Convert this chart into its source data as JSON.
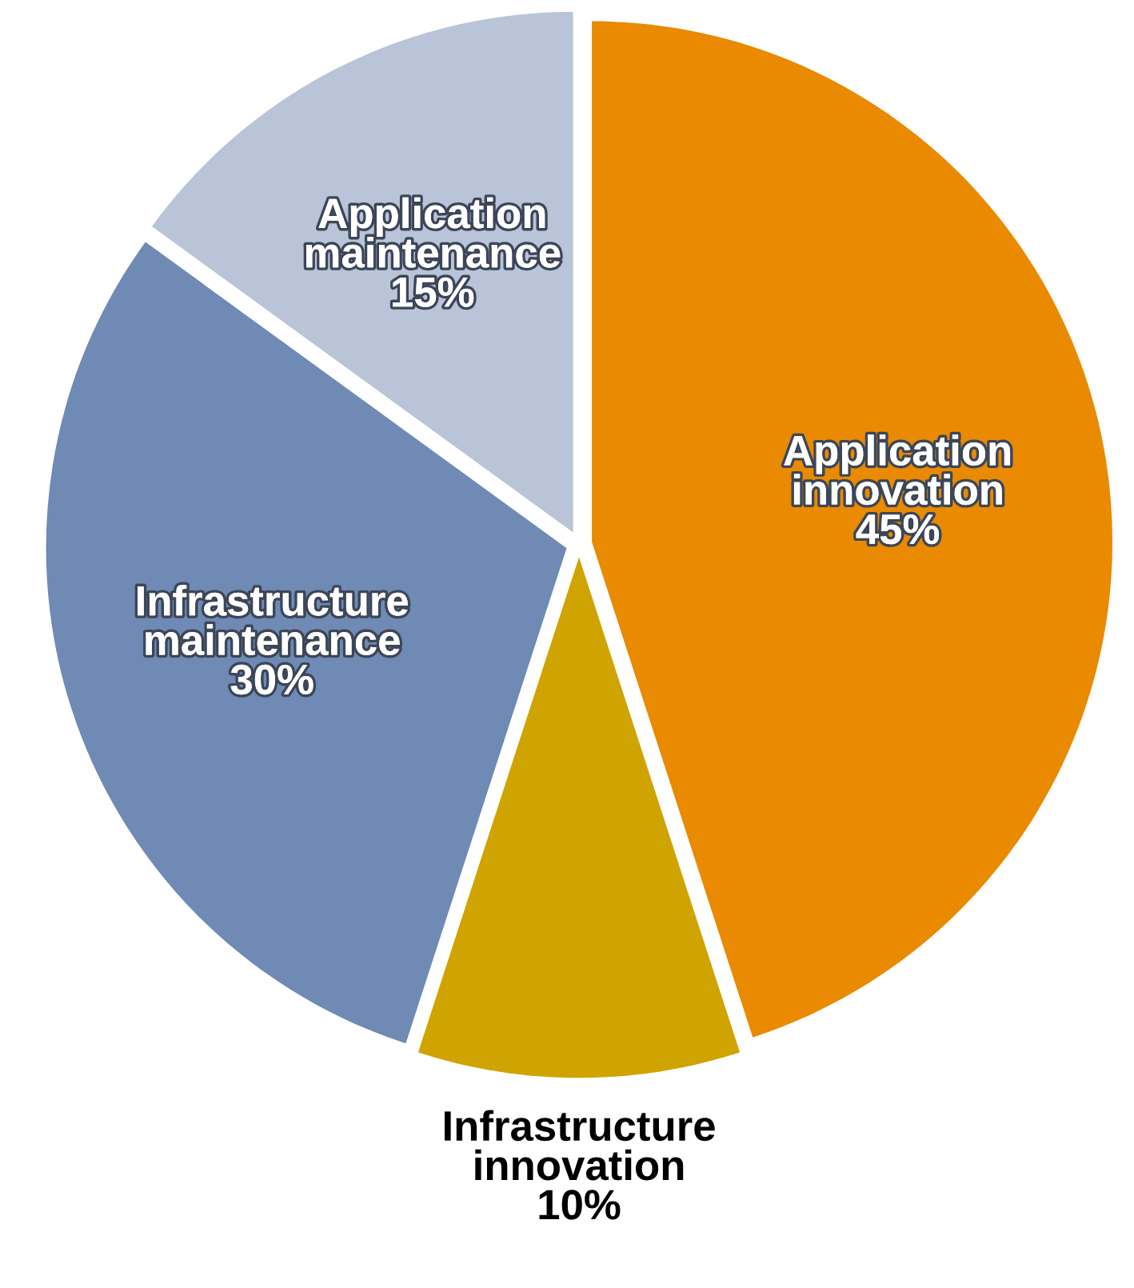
{
  "chart_data": {
    "type": "pie",
    "categories": [
      "Application innovation",
      "Infrastructure innovation",
      "Infrastructure maintenance",
      "Application maintenance"
    ],
    "values": [
      45,
      10,
      30,
      15
    ],
    "colors": [
      "#e98a00",
      "#cfa400",
      "#6f8ab4",
      "#b9c4d8"
    ],
    "value_labels": [
      "45%",
      "10%",
      "30%",
      "15%"
    ]
  }
}
